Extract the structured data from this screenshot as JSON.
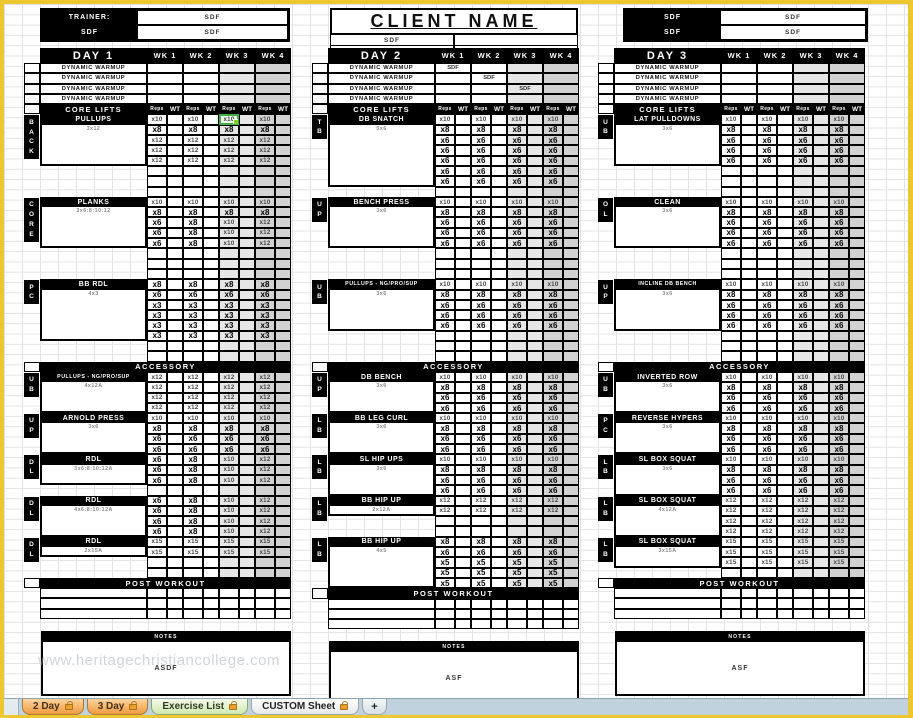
{
  "header": {
    "trainer": {
      "label": "TRAINER:",
      "row2_label": "SDF",
      "value1": "SDF",
      "value2": "SDF"
    },
    "client": {
      "title": "CLIENT NAME",
      "sub_r1c1": "SDF",
      "sub_r2c2": "SDF"
    },
    "day3_info": {
      "label1": "SDF",
      "label2": "SDF",
      "value1": "SDF",
      "value2": "SDF"
    }
  },
  "labels": {
    "dynamic_warmup": "DYNAMIC WARMUP",
    "core_lifts": "CORE LIFTS",
    "reps": "Reps",
    "wt": "WT",
    "accessory": "ACCESSORY",
    "post_workout": "POST WORKOUT",
    "notes": "NOTES"
  },
  "selection": {
    "day": 0,
    "section": 0,
    "row": 0,
    "week": 2
  },
  "watermark": "www.heritagechristiancollege.com",
  "colors": {
    "frame": "#edc72f",
    "header_bg": "#000000",
    "wk3_bg": "#e6e6e6",
    "wk4_bg": "#d2d2d2",
    "selection_green": "#3fae49",
    "tab_orange": "#ef9b40",
    "tab_green": "#cfe8b0",
    "tabbar_bg": "#c0d2dd"
  },
  "days": [
    {
      "title": "DAY 1",
      "weeks": [
        "WK 1",
        "WK 2",
        "WK 3",
        "WK 4"
      ],
      "warmup": [
        [
          "",
          "",
          "",
          ""
        ],
        [
          "",
          "",
          "",
          ""
        ],
        [
          "",
          "",
          "",
          ""
        ],
        [
          "",
          "",
          "",
          ""
        ]
      ],
      "sections": [
        {
          "group": "BACK",
          "name": "PULLUPS",
          "scheme": "3x12",
          "empty": 3,
          "rows": [
            [
              "x10",
              "x10",
              "x10",
              "x10"
            ],
            [
              "x8",
              "x8",
              "x8",
              "x8"
            ],
            [
              "x12",
              "x12",
              "x12",
              "x12"
            ],
            [
              "x12",
              "x12",
              "x12",
              "x12"
            ],
            [
              "x12",
              "x12",
              "x12",
              "x12"
            ]
          ]
        },
        {
          "group": "CORE",
          "name": "PLANKS",
          "scheme": "3x6:8:10:12",
          "empty": 3,
          "rows": [
            [
              "x10",
              "x10",
              "x10",
              "x10"
            ],
            [
              "x8",
              "x8",
              "x8",
              "x8"
            ],
            [
              "x6",
              "x8",
              "x10",
              "x12"
            ],
            [
              "x6",
              "x8",
              "x10",
              "x12"
            ],
            [
              "x6",
              "x8",
              "x10",
              "x12"
            ]
          ]
        },
        {
          "group": "PC",
          "name": "BB RDL",
          "scheme": "4x3",
          "empty": 2,
          "rows": [
            [
              "x8",
              "x8",
              "x8",
              "x8"
            ],
            [
              "x6",
              "x6",
              "x6",
              "x6"
            ],
            [
              "x3",
              "x3",
              "x3",
              "x3"
            ],
            [
              "x3",
              "x3",
              "x3",
              "x3"
            ],
            [
              "x3",
              "x3",
              "x3",
              "x3"
            ],
            [
              "x3",
              "x3",
              "x3",
              "x3"
            ]
          ]
        }
      ],
      "accessory": [
        {
          "group": "UB",
          "name": "PULLUPS - NG/PRO/SUP",
          "scheme": "4x12A",
          "empty": 0,
          "rows": [
            [
              "x12",
              "x12",
              "x12",
              "x12"
            ],
            [
              "x12",
              "x12",
              "x12",
              "x12"
            ],
            [
              "x12",
              "x12",
              "x12",
              "x12"
            ],
            [
              "x12",
              "x12",
              "x12",
              "x12"
            ]
          ]
        },
        {
          "group": "UP",
          "name": "ARNOLD PRESS",
          "scheme": "3x6",
          "empty": 0,
          "rows": [
            [
              "x10",
              "x10",
              "x10",
              "x10"
            ],
            [
              "x8",
              "x8",
              "x8",
              "x8"
            ],
            [
              "x6",
              "x6",
              "x6",
              "x6"
            ],
            [
              "x6",
              "x6",
              "x6",
              "x6"
            ]
          ]
        },
        {
          "group": "DL",
          "name": "RDL",
          "scheme": "3x6:8:10:12A",
          "empty": 1,
          "rows": [
            [
              "x6",
              "x8",
              "x10",
              "x12"
            ],
            [
              "x6",
              "x8",
              "x10",
              "x12"
            ],
            [
              "x6",
              "x8",
              "x10",
              "x12"
            ]
          ]
        },
        {
          "group": "DL",
          "name": "RDL",
          "scheme": "4x6:8:10:12A",
          "empty": 0,
          "rows": [
            [
              "x6",
              "x8",
              "x10",
              "x12"
            ],
            [
              "x6",
              "x8",
              "x10",
              "x12"
            ],
            [
              "x6",
              "x8",
              "x10",
              "x12"
            ],
            [
              "x6",
              "x8",
              "x10",
              "x12"
            ]
          ]
        },
        {
          "group": "DL",
          "name": "RDL",
          "scheme": "2x15A",
          "empty": 2,
          "rows": [
            [
              "x15",
              "x15",
              "x15",
              "x15"
            ],
            [
              "x15",
              "x15",
              "x15",
              "x15"
            ]
          ]
        }
      ],
      "notes_value": "ASDF"
    },
    {
      "title": "DAY 2",
      "weeks": [
        "WK 1",
        "WK 2",
        "WK 3",
        "WK 4"
      ],
      "warmup": [
        [
          "SDF",
          "",
          "",
          ""
        ],
        [
          "",
          "SDF",
          "",
          ""
        ],
        [
          "",
          "",
          "SDF",
          ""
        ],
        [
          "",
          "",
          "",
          ""
        ]
      ],
      "sections": [
        {
          "group": "TB",
          "name": "DB SNATCH",
          "scheme": "5x6",
          "empty": 1,
          "rows": [
            [
              "x10",
              "x10",
              "x10",
              "x10"
            ],
            [
              "x8",
              "x8",
              "x8",
              "x8"
            ],
            [
              "x6",
              "x6",
              "x6",
              "x6"
            ],
            [
              "x6",
              "x6",
              "x6",
              "x6"
            ],
            [
              "x6",
              "x6",
              "x6",
              "x6"
            ],
            [
              "x6",
              "x6",
              "x6",
              "x6"
            ],
            [
              "x6",
              "x6",
              "x6",
              "x6"
            ]
          ]
        },
        {
          "group": "UP",
          "name": "BENCH PRESS",
          "scheme": "3x6",
          "empty": 3,
          "rows": [
            [
              "x10",
              "x10",
              "x10",
              "x10"
            ],
            [
              "x8",
              "x8",
              "x8",
              "x8"
            ],
            [
              "x6",
              "x6",
              "x6",
              "x6"
            ],
            [
              "x6",
              "x6",
              "x6",
              "x6"
            ],
            [
              "x6",
              "x6",
              "x6",
              "x6"
            ]
          ]
        },
        {
          "group": "UB",
          "name": "PULLUPS - NG/PRO/SUP",
          "scheme": "3x6",
          "empty": 3,
          "rows": [
            [
              "x10",
              "x10",
              "x10",
              "x10"
            ],
            [
              "x8",
              "x8",
              "x8",
              "x8"
            ],
            [
              "x6",
              "x6",
              "x6",
              "x6"
            ],
            [
              "x6",
              "x6",
              "x6",
              "x6"
            ],
            [
              "x6",
              "x6",
              "x6",
              "x6"
            ]
          ]
        }
      ],
      "accessory": [
        {
          "group": "UP",
          "name": "DB BENCH",
          "scheme": "3x6",
          "empty": 0,
          "rows": [
            [
              "x10",
              "x10",
              "x10",
              "x10"
            ],
            [
              "x8",
              "x8",
              "x8",
              "x8"
            ],
            [
              "x6",
              "x6",
              "x6",
              "x6"
            ],
            [
              "x6",
              "x6",
              "x6",
              "x6"
            ]
          ]
        },
        {
          "group": "LB",
          "name": "BB LEG CURL",
          "scheme": "3x6",
          "empty": 0,
          "rows": [
            [
              "x10",
              "x10",
              "x10",
              "x10"
            ],
            [
              "x8",
              "x8",
              "x8",
              "x8"
            ],
            [
              "x6",
              "x6",
              "x6",
              "x6"
            ],
            [
              "x6",
              "x6",
              "x6",
              "x6"
            ]
          ]
        },
        {
          "group": "LB",
          "name": "SL HIP UPS",
          "scheme": "3x6",
          "empty": 0,
          "rows": [
            [
              "x10",
              "x10",
              "x10",
              "x10"
            ],
            [
              "x8",
              "x8",
              "x8",
              "x8"
            ],
            [
              "x6",
              "x6",
              "x6",
              "x6"
            ],
            [
              "x6",
              "x6",
              "x6",
              "x6"
            ]
          ]
        },
        {
          "group": "LB",
          "name": "BB HIP UP",
          "scheme": "2x12A",
          "empty": 2,
          "rows": [
            [
              "x12",
              "x12",
              "x12",
              "x12"
            ],
            [
              "x12",
              "x12",
              "x12",
              "x12"
            ]
          ]
        },
        {
          "group": "LB",
          "name": "BB HIP UP",
          "scheme": "4x5",
          "empty": 0,
          "rows": [
            [
              "x8",
              "x8",
              "x8",
              "x8"
            ],
            [
              "x6",
              "x6",
              "x6",
              "x6"
            ],
            [
              "x5",
              "x5",
              "x5",
              "x5"
            ],
            [
              "x5",
              "x5",
              "x5",
              "x5"
            ],
            [
              "x5",
              "x5",
              "x5",
              "x5"
            ]
          ]
        }
      ],
      "notes_value": "ASF"
    },
    {
      "title": "DAY 3",
      "weeks": [
        "WK 1",
        "WK 2",
        "WK 3",
        "WK 4"
      ],
      "warmup": [
        [
          "",
          "",
          "",
          ""
        ],
        [
          "",
          "",
          "",
          ""
        ],
        [
          "",
          "",
          "",
          ""
        ],
        [
          "",
          "",
          "",
          ""
        ]
      ],
      "sections": [
        {
          "group": "UB",
          "name": "LAT PULLDOWNS",
          "scheme": "3x6",
          "empty": 3,
          "rows": [
            [
              "x10",
              "x10",
              "x10",
              "x10"
            ],
            [
              "x8",
              "x8",
              "x8",
              "x8"
            ],
            [
              "x6",
              "x6",
              "x6",
              "x6"
            ],
            [
              "x6",
              "x6",
              "x6",
              "x6"
            ],
            [
              "x6",
              "x6",
              "x6",
              "x6"
            ]
          ]
        },
        {
          "group": "OL",
          "name": "CLEAN",
          "scheme": "3x6",
          "empty": 3,
          "rows": [
            [
              "x10",
              "x10",
              "x10",
              "x10"
            ],
            [
              "x8",
              "x8",
              "x8",
              "x8"
            ],
            [
              "x6",
              "x6",
              "x6",
              "x6"
            ],
            [
              "x6",
              "x6",
              "x6",
              "x6"
            ],
            [
              "x6",
              "x6",
              "x6",
              "x6"
            ]
          ]
        },
        {
          "group": "UP",
          "name": "INCLINE DB BENCH",
          "scheme": "3x6",
          "empty": 3,
          "rows": [
            [
              "x10",
              "x10",
              "x10",
              "x10"
            ],
            [
              "x8",
              "x8",
              "x8",
              "x8"
            ],
            [
              "x6",
              "x6",
              "x6",
              "x6"
            ],
            [
              "x6",
              "x6",
              "x6",
              "x6"
            ],
            [
              "x6",
              "x6",
              "x6",
              "x6"
            ]
          ]
        }
      ],
      "accessory": [
        {
          "group": "UB",
          "name": "INVERTED ROW",
          "scheme": "3x6",
          "empty": 0,
          "rows": [
            [
              "x10",
              "x10",
              "x10",
              "x10"
            ],
            [
              "x8",
              "x8",
              "x8",
              "x8"
            ],
            [
              "x6",
              "x6",
              "x6",
              "x6"
            ],
            [
              "x6",
              "x6",
              "x6",
              "x6"
            ]
          ]
        },
        {
          "group": "PC",
          "name": "REVERSE HYPERS",
          "scheme": "3x6",
          "empty": 0,
          "rows": [
            [
              "x10",
              "x10",
              "x10",
              "x10"
            ],
            [
              "x8",
              "x8",
              "x8",
              "x8"
            ],
            [
              "x6",
              "x6",
              "x6",
              "x6"
            ],
            [
              "x6",
              "x6",
              "x6",
              "x6"
            ]
          ]
        },
        {
          "group": "LB",
          "name": "SL BOX SQUAT",
          "scheme": "3x6",
          "empty": 0,
          "rows": [
            [
              "x10",
              "x10",
              "x10",
              "x10"
            ],
            [
              "x8",
              "x8",
              "x8",
              "x8"
            ],
            [
              "x6",
              "x6",
              "x6",
              "x6"
            ],
            [
              "x6",
              "x6",
              "x6",
              "x6"
            ]
          ]
        },
        {
          "group": "LB",
          "name": "SL BOX SQUAT",
          "scheme": "4x12A",
          "empty": 0,
          "rows": [
            [
              "x12",
              "x12",
              "x12",
              "x12"
            ],
            [
              "x12",
              "x12",
              "x12",
              "x12"
            ],
            [
              "x12",
              "x12",
              "x12",
              "x12"
            ],
            [
              "x12",
              "x12",
              "x12",
              "x12"
            ]
          ]
        },
        {
          "group": "LB",
          "name": "SL BOX SQUAT",
          "scheme": "3x15A",
          "empty": 1,
          "rows": [
            [
              "x15",
              "x15",
              "x15",
              "x15"
            ],
            [
              "x15",
              "x15",
              "x15",
              "x15"
            ],
            [
              "x15",
              "x15",
              "x15",
              "x15"
            ]
          ]
        }
      ],
      "notes_value": "ASF"
    }
  ],
  "tab_bar": {
    "tabs": [
      {
        "label": "2 Day",
        "style": "orange",
        "locked": true,
        "active": true
      },
      {
        "label": "3 Day",
        "style": "orange",
        "locked": true,
        "active": false
      },
      {
        "label": "Exercise List",
        "style": "green",
        "locked": true,
        "active": false
      },
      {
        "label": "CUSTOM Sheet",
        "style": "plain",
        "locked": true,
        "active": false
      },
      {
        "label": "+",
        "style": "plus",
        "locked": false,
        "active": false
      }
    ]
  }
}
